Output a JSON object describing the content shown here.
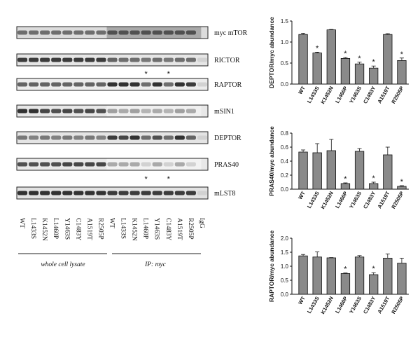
{
  "lanes": [
    "WT",
    "L1433S",
    "K1452N",
    "L1460P",
    "Y1463S",
    "C1483Y",
    "A1519T",
    "R2505P",
    "WT",
    "L1433S",
    "K1452N",
    "L1460P",
    "Y1463S",
    "C1483Y",
    "A1519T",
    "R2505P",
    "IgG"
  ],
  "blots": [
    {
      "label": "myc mTOR",
      "bands": [
        0.55,
        0.55,
        0.55,
        0.55,
        0.55,
        0.55,
        0.55,
        0.55,
        0.7,
        0.7,
        0.7,
        0.7,
        0.7,
        0.7,
        0.7,
        0.7,
        0.0
      ],
      "bg": "#dcdcdc",
      "ip_bg": "#a9a9a9"
    },
    {
      "label": "RICTOR",
      "bands": [
        0.8,
        0.8,
        0.8,
        0.8,
        0.8,
        0.8,
        0.8,
        0.8,
        0.6,
        0.55,
        0.55,
        0.5,
        0.55,
        0.5,
        0.55,
        0.55,
        0.05
      ],
      "bg": "#e6e6e6",
      "ip_bg": "#e6e6e6"
    },
    {
      "label": "RAPTOR",
      "bands": [
        0.6,
        0.6,
        0.6,
        0.6,
        0.6,
        0.6,
        0.6,
        0.6,
        0.85,
        0.85,
        0.85,
        0.55,
        0.85,
        0.55,
        0.85,
        0.8,
        0.05
      ],
      "bg": "#ececec",
      "ip_bg": "#ececec",
      "stars": [
        11,
        13
      ]
    },
    {
      "label": "mSIN1",
      "bands": [
        0.85,
        0.85,
        0.75,
        0.7,
        0.75,
        0.7,
        0.75,
        0.7,
        0.3,
        0.25,
        0.3,
        0.2,
        0.25,
        0.2,
        0.3,
        0.25,
        0.0
      ],
      "bg": "#e8e8e8",
      "ip_bg": "#f0f0f0"
    },
    {
      "label": "DEPTOR",
      "bands": [
        0.5,
        0.45,
        0.5,
        0.45,
        0.5,
        0.45,
        0.5,
        0.45,
        0.8,
        0.75,
        0.85,
        0.55,
        0.7,
        0.55,
        0.85,
        0.6,
        0.05
      ],
      "bg": "#e4e4e4",
      "ip_bg": "#e4e4e4"
    },
    {
      "label": "PRAS40",
      "bands": [
        0.7,
        0.7,
        0.7,
        0.7,
        0.75,
        0.75,
        0.75,
        0.75,
        0.25,
        0.25,
        0.25,
        0.05,
        0.25,
        0.05,
        0.25,
        0.05,
        0.0
      ],
      "bg": "#e8e8e8",
      "ip_bg": "#f2f2f2",
      "stars_below": [
        11,
        13
      ]
    },
    {
      "label": "mLST8",
      "bands": [
        0.85,
        0.85,
        0.85,
        0.85,
        0.85,
        0.85,
        0.85,
        0.85,
        0.8,
        0.8,
        0.8,
        0.8,
        0.8,
        0.8,
        0.8,
        0.8,
        0.05
      ],
      "bg": "#e2e2e2",
      "ip_bg": "#e2e2e2"
    }
  ],
  "groups": {
    "left": "whole cell lysate",
    "right": "IP: myc"
  },
  "star_symbol": "*",
  "chart_data": [
    {
      "type": "bar",
      "ylabel": "DEPTOR/myc abundance",
      "ylim": [
        0,
        1.5
      ],
      "yticks": [
        "0.0",
        "0.5",
        "1.0",
        "1.5"
      ],
      "categories": [
        "WT",
        "L1433S",
        "K1452N",
        "L1460P",
        "Y1463S",
        "C1483Y",
        "A1519T",
        "R2505P"
      ],
      "values": [
        1.18,
        0.74,
        1.29,
        0.61,
        0.48,
        0.38,
        1.18,
        0.56
      ],
      "errors": [
        0.03,
        0.02,
        0.01,
        0.02,
        0.04,
        0.05,
        0.02,
        0.06
      ],
      "significant": [
        false,
        true,
        false,
        true,
        true,
        true,
        false,
        true
      ]
    },
    {
      "type": "bar",
      "ylabel": "PRAS40/myc abundance",
      "ylim": [
        0,
        0.8
      ],
      "yticks": [
        "0.0",
        "0.2",
        "0.4",
        "0.6",
        "0.8"
      ],
      "categories": [
        "WT",
        "L1433S",
        "K1452N",
        "L1460P",
        "Y1463S",
        "C1483Y",
        "A1519T",
        "R2505P"
      ],
      "values": [
        0.53,
        0.52,
        0.55,
        0.08,
        0.54,
        0.08,
        0.49,
        0.04
      ],
      "errors": [
        0.03,
        0.13,
        0.16,
        0.01,
        0.04,
        0.02,
        0.11,
        0.01
      ],
      "significant": [
        false,
        false,
        false,
        true,
        false,
        true,
        false,
        true
      ]
    },
    {
      "type": "bar",
      "ylabel": "RAPTOR/myc abundance",
      "ylim": [
        0,
        2.0
      ],
      "yticks": [
        "0.0",
        "0.5",
        "1.0",
        "1.5",
        "2.0"
      ],
      "categories": [
        "WT",
        "L1433S",
        "K1452N",
        "L1460P",
        "Y1463S",
        "C1483Y",
        "A1519T",
        "R2505P"
      ],
      "values": [
        1.37,
        1.33,
        1.3,
        0.74,
        1.33,
        0.7,
        1.29,
        1.11
      ],
      "errors": [
        0.05,
        0.18,
        0.01,
        0.02,
        0.05,
        0.07,
        0.15,
        0.18
      ],
      "significant": [
        false,
        false,
        false,
        true,
        false,
        true,
        false,
        false
      ]
    }
  ]
}
